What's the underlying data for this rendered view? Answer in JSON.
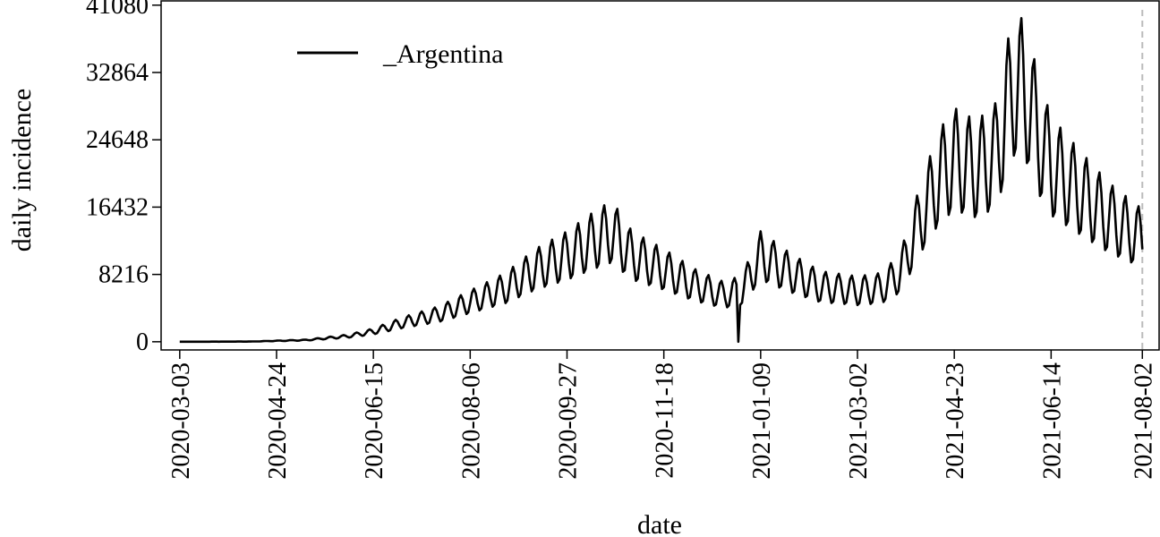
{
  "chart_data": {
    "type": "line",
    "title": "",
    "xlabel": "date",
    "ylabel": "daily incidence",
    "x_tick_labels": [
      "2020-03-03",
      "2020-04-24",
      "2020-06-15",
      "2020-08-06",
      "2020-09-27",
      "2020-11-18",
      "2021-01-09",
      "2021-03-02",
      "2021-04-23",
      "2021-06-14",
      "2021-08-02"
    ],
    "y_ticks": [
      0,
      8216,
      16432,
      24648,
      32864,
      41080
    ],
    "ylim": [
      -1000,
      41600
    ],
    "xlim": [
      "2020-02-22",
      "2021-08-11"
    ],
    "legend": {
      "position": "top-left",
      "entries": [
        "_Argentina"
      ]
    },
    "grid": false,
    "reference_line": {
      "x": "2021-08-02",
      "style": "dashed",
      "color": "#bbbbbb"
    },
    "series": [
      {
        "name": "_Argentina",
        "color": "#000000",
        "weekly_dip_fraction": 0.45,
        "trend": [
          {
            "date": "2020-03-03",
            "value": 0
          },
          {
            "date": "2020-04-10",
            "value": 30
          },
          {
            "date": "2020-05-10",
            "value": 250
          },
          {
            "date": "2020-06-01",
            "value": 800
          },
          {
            "date": "2020-06-15",
            "value": 1500
          },
          {
            "date": "2020-07-01",
            "value": 2800
          },
          {
            "date": "2020-07-20",
            "value": 4000
          },
          {
            "date": "2020-08-06",
            "value": 5800
          },
          {
            "date": "2020-08-25",
            "value": 7800
          },
          {
            "date": "2020-09-10",
            "value": 10500
          },
          {
            "date": "2020-09-27",
            "value": 12500
          },
          {
            "date": "2020-10-10",
            "value": 14500
          },
          {
            "date": "2020-10-21",
            "value": 16000
          },
          {
            "date": "2020-11-01",
            "value": 12500
          },
          {
            "date": "2020-11-18",
            "value": 10500
          },
          {
            "date": "2020-12-05",
            "value": 8200
          },
          {
            "date": "2020-12-20",
            "value": 6800
          },
          {
            "date": "2020-12-30",
            "value": 7500
          },
          {
            "date": "2021-01-09",
            "value": 12500
          },
          {
            "date": "2021-01-25",
            "value": 10000
          },
          {
            "date": "2021-02-10",
            "value": 8000
          },
          {
            "date": "2021-03-02",
            "value": 7400
          },
          {
            "date": "2021-03-15",
            "value": 7800
          },
          {
            "date": "2021-03-25",
            "value": 10000
          },
          {
            "date": "2021-04-05",
            "value": 18000
          },
          {
            "date": "2021-04-15",
            "value": 24000
          },
          {
            "date": "2021-04-23",
            "value": 26500
          },
          {
            "date": "2021-05-05",
            "value": 25000
          },
          {
            "date": "2021-05-15",
            "value": 27000
          },
          {
            "date": "2021-05-25",
            "value": 37500
          },
          {
            "date": "2021-06-01",
            "value": 36000
          },
          {
            "date": "2021-06-07",
            "value": 30000
          },
          {
            "date": "2021-06-14",
            "value": 25500
          },
          {
            "date": "2021-06-30",
            "value": 21500
          },
          {
            "date": "2021-07-15",
            "value": 18000
          },
          {
            "date": "2021-08-02",
            "value": 15000
          }
        ],
        "dip_points": [
          {
            "date": "2020-12-28",
            "value": 0
          }
        ]
      }
    ]
  }
}
